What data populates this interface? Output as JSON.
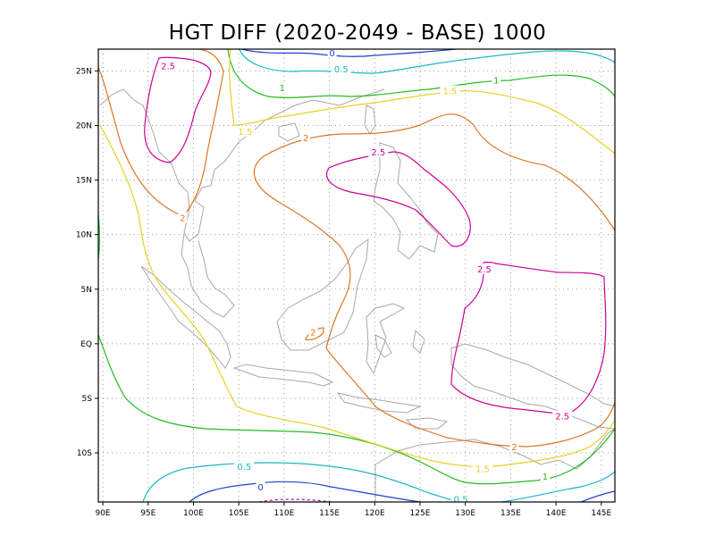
{
  "chart_data": {
    "type": "contour",
    "title": "HGT DIFF (2020-2049 - BASE) 1000",
    "x_ticks": [
      "90E",
      "95E",
      "100E",
      "105E",
      "110E",
      "115E",
      "120E",
      "125E",
      "130E",
      "135E",
      "140E",
      "145E"
    ],
    "y_ticks": [
      "10S",
      "5S",
      "EQ",
      "5N",
      "10N",
      "15N",
      "20N",
      "25N"
    ],
    "xlim": [
      89.5,
      146.5
    ],
    "ylim": [
      -14.5,
      27
    ],
    "grid": true,
    "contour_levels": [
      {
        "value": "0",
        "color": "#1f3fd0"
      },
      {
        "value": "0.5",
        "color": "#18b8c8"
      },
      {
        "value": "1",
        "color": "#22bb22"
      },
      {
        "value": "1.5",
        "color": "#e8d020"
      },
      {
        "value": "2",
        "color": "#dd7722"
      },
      {
        "value": "2.5",
        "color": "#cc0099"
      }
    ],
    "contour_labels": [
      {
        "text": "0",
        "lon": 115.3,
        "lat": 26.6,
        "color": "#1f3fd0"
      },
      {
        "text": "0.5",
        "lon": 116.3,
        "lat": 25.1,
        "color": "#18b8c8"
      },
      {
        "text": "1",
        "lon": 109.8,
        "lat": 23.4,
        "color": "#22bb22"
      },
      {
        "text": "1",
        "lon": 133.4,
        "lat": 24.1,
        "color": "#22bb22"
      },
      {
        "text": "1.5",
        "lon": 128.3,
        "lat": 23.1,
        "color": "#e8d020"
      },
      {
        "text": "1.5",
        "lon": 105.7,
        "lat": 19.4,
        "color": "#e8d020"
      },
      {
        "text": "2.5",
        "lon": 97.2,
        "lat": 25.4,
        "color": "#cc0099"
      },
      {
        "text": "2",
        "lon": 112.4,
        "lat": 18.8,
        "color": "#dd7722"
      },
      {
        "text": "2.5",
        "lon": 120.4,
        "lat": 17.5,
        "color": "#cc0099"
      },
      {
        "text": "2",
        "lon": 98.8,
        "lat": 11.5,
        "color": "#dd7722"
      },
      {
        "text": "2.5",
        "lon": 132.1,
        "lat": 6.8,
        "color": "#cc0099"
      },
      {
        "text": "2",
        "lon": 113.2,
        "lat": 1.0,
        "color": "#dd7722"
      },
      {
        "text": "2.5",
        "lon": 140.7,
        "lat": -6.7,
        "color": "#cc0099"
      },
      {
        "text": "2",
        "lon": 135.4,
        "lat": -9.5,
        "color": "#dd7722"
      },
      {
        "text": "1.5",
        "lon": 131.9,
        "lat": -11.5,
        "color": "#e8d020"
      },
      {
        "text": "1",
        "lon": 138.8,
        "lat": -12.2,
        "color": "#22bb22"
      },
      {
        "text": "0.5",
        "lon": 105.6,
        "lat": -11.3,
        "color": "#18b8c8"
      },
      {
        "text": "0.5",
        "lon": 129.5,
        "lat": -14.3,
        "color": "#18b8c8"
      },
      {
        "text": "0",
        "lon": 107.4,
        "lat": -13.2,
        "color": "#1f3fd0"
      }
    ]
  }
}
